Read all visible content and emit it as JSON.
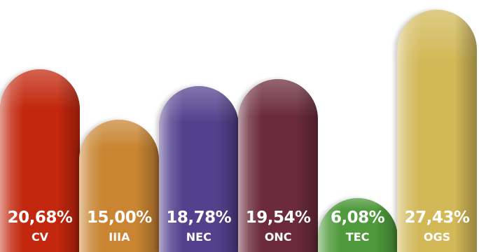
{
  "chart_data": {
    "type": "bar",
    "categories": [
      "CV",
      "IIIA",
      "NEC",
      "ONC",
      "TEC",
      "OGS"
    ],
    "values": [
      20.68,
      15.0,
      18.78,
      19.54,
      6.08,
      27.43
    ],
    "value_labels": [
      "20,68%",
      "15,00%",
      "18,78%",
      "19,54%",
      "6,08%",
      "27,43%"
    ],
    "colors": [
      "#c3270d",
      "#c98532",
      "#53418e",
      "#6b2b3c",
      "#4f9a3c",
      "#d2b857"
    ],
    "title": "",
    "xlabel": "",
    "ylabel": "",
    "ylim": [
      0,
      28.5
    ],
    "grid": false,
    "legend": "none"
  }
}
